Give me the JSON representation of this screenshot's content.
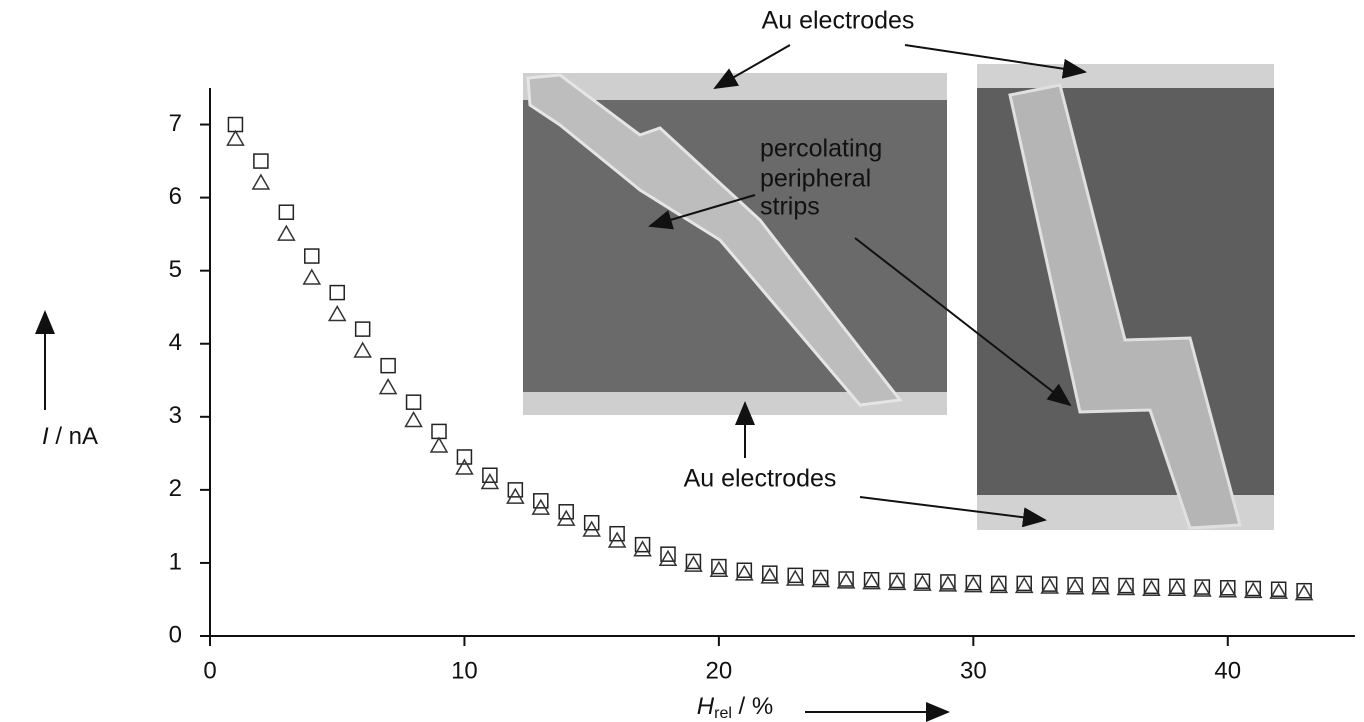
{
  "chart_data": {
    "type": "scatter",
    "x": [
      1,
      2,
      3,
      4,
      5,
      6,
      7,
      8,
      9,
      10,
      11,
      12,
      13,
      14,
      15,
      16,
      17,
      18,
      19,
      20,
      21,
      22,
      23,
      24,
      25,
      26,
      27,
      28,
      29,
      30,
      31,
      32,
      33,
      34,
      35,
      36,
      37,
      38,
      39,
      40,
      41,
      42,
      43
    ],
    "series": [
      {
        "marker": "square",
        "color": "#222222",
        "values": [
          7.0,
          6.5,
          5.8,
          5.2,
          4.7,
          4.2,
          3.7,
          3.2,
          2.8,
          2.45,
          2.2,
          2.0,
          1.85,
          1.7,
          1.55,
          1.4,
          1.25,
          1.12,
          1.02,
          0.95,
          0.9,
          0.86,
          0.83,
          0.8,
          0.78,
          0.77,
          0.76,
          0.75,
          0.74,
          0.73,
          0.72,
          0.72,
          0.71,
          0.7,
          0.7,
          0.69,
          0.68,
          0.68,
          0.67,
          0.66,
          0.65,
          0.64,
          0.62
        ]
      },
      {
        "marker": "triangle",
        "color": "#333333",
        "values": [
          6.8,
          6.2,
          5.5,
          4.9,
          4.4,
          3.9,
          3.4,
          2.95,
          2.6,
          2.3,
          2.1,
          1.9,
          1.75,
          1.6,
          1.45,
          1.3,
          1.18,
          1.05,
          0.97,
          0.9,
          0.85,
          0.81,
          0.78,
          0.76,
          0.74,
          0.73,
          0.72,
          0.71,
          0.7,
          0.69,
          0.68,
          0.68,
          0.67,
          0.66,
          0.66,
          0.65,
          0.64,
          0.64,
          0.63,
          0.62,
          0.61,
          0.6,
          0.58
        ]
      }
    ],
    "xlabel": {
      "symbol": "H",
      "subscript": "rel",
      "unit": " / %"
    },
    "ylabel": {
      "symbol": "I",
      "unit": " / nA"
    },
    "xlim": [
      0,
      45
    ],
    "ylim": [
      0,
      7.5
    ],
    "xticks": [
      0,
      10,
      20,
      30,
      40
    ],
    "yticks": [
      0,
      1,
      2,
      3,
      4,
      5,
      6,
      7
    ],
    "grid": false,
    "annotations": [
      "Au electrodes",
      "percolating",
      "peripheral",
      "strips",
      "Au electrodes"
    ]
  }
}
